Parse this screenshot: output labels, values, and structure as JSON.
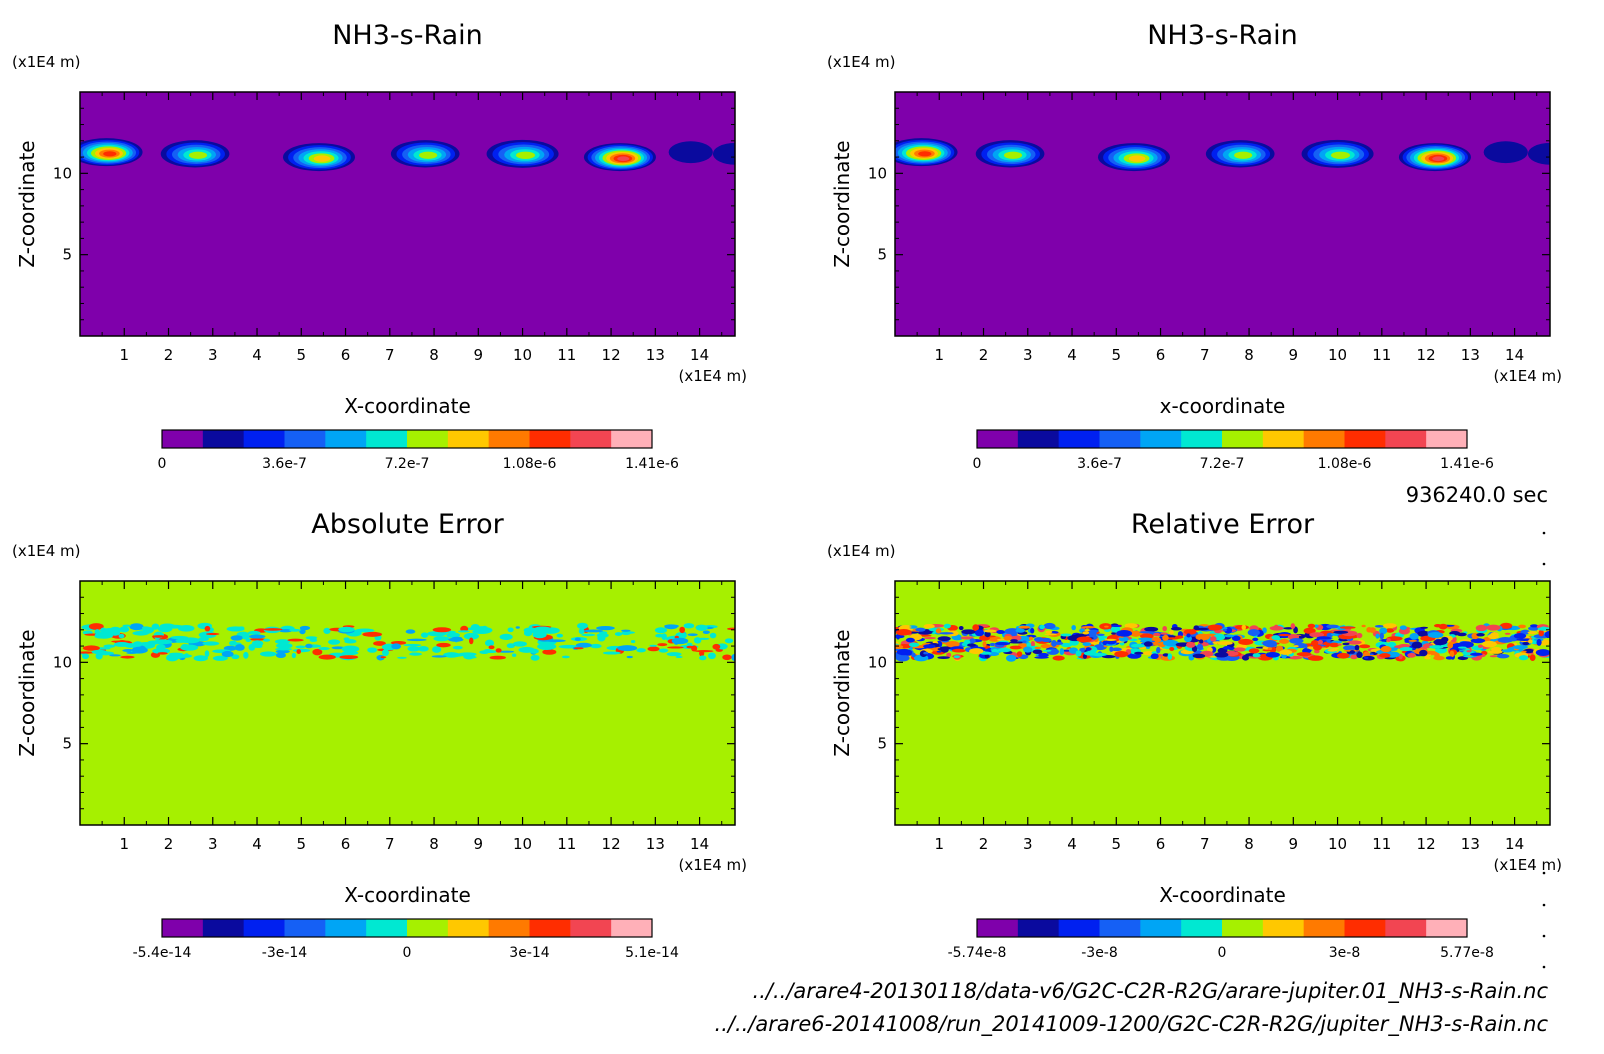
{
  "chart_data": [
    {
      "type": "heatmap",
      "title": "NH3-s-Rain",
      "xlabel": "X-coordinate",
      "ylabel": "Z-coordinate",
      "x_unit": "(x1E4 m)",
      "y_unit": "(x1E4 m)",
      "xlim": [
        0,
        14.8
      ],
      "ylim": [
        0,
        15
      ],
      "x_ticks": [
        "1",
        "2",
        "3",
        "4",
        "5",
        "6",
        "7",
        "8",
        "9",
        "10",
        "11",
        "12",
        "13",
        "14"
      ],
      "y_ticks": [
        "5",
        "10"
      ],
      "background_color": "#7f00ab",
      "band_z": [
        10.3,
        12
      ],
      "colorbar": {
        "tick_labels": [
          "0",
          "3.6e-7",
          "7.2e-7",
          "1.08e-6",
          "1.41e-6"
        ],
        "colors": [
          "#7f00ab",
          "#0a0a9e",
          "#0020f0",
          "#1560f5",
          "#00a5f5",
          "#00e8d2",
          "#a6f000",
          "#ffc800",
          "#ff7a00",
          "#ff2d00",
          "#f24552",
          "#ffb0b8"
        ]
      },
      "clouds": [
        {
          "x": 0.6,
          "z": 11.3,
          "peak": 1.3e-06
        },
        {
          "x": 2.6,
          "z": 11.2,
          "peak": 8e-07
        },
        {
          "x": 5.4,
          "z": 11.0,
          "peak": 9.5e-07
        },
        {
          "x": 7.8,
          "z": 11.2,
          "peak": 8e-07
        },
        {
          "x": 10.0,
          "z": 11.2,
          "peak": 9e-07
        },
        {
          "x": 12.2,
          "z": 11.0,
          "peak": 1.41e-06
        },
        {
          "x": 13.8,
          "z": 11.3,
          "peak": 2e-07
        },
        {
          "x": 14.8,
          "z": 11.2,
          "peak": 2e-07
        }
      ]
    },
    {
      "type": "heatmap",
      "title": "NH3-s-Rain",
      "xlabel": "x-coordinate",
      "ylabel": "Z-coordinate",
      "x_unit": "(x1E4 m)",
      "y_unit": "(x1E4 m)",
      "xlim": [
        0,
        14.8
      ],
      "ylim": [
        0,
        15
      ],
      "x_ticks": [
        "1",
        "2",
        "3",
        "4",
        "5",
        "6",
        "7",
        "8",
        "9",
        "10",
        "11",
        "12",
        "13",
        "14"
      ],
      "y_ticks": [
        "5",
        "10"
      ],
      "background_color": "#7f00ab",
      "band_z": [
        10.3,
        12
      ],
      "colorbar": {
        "tick_labels": [
          "0",
          "3.6e-7",
          "7.2e-7",
          "1.08e-6",
          "1.41e-6"
        ],
        "colors": [
          "#7f00ab",
          "#0a0a9e",
          "#0020f0",
          "#1560f5",
          "#00a5f5",
          "#00e8d2",
          "#a6f000",
          "#ffc800",
          "#ff7a00",
          "#ff2d00",
          "#f24552",
          "#ffb0b8"
        ]
      },
      "clouds": [
        {
          "x": 0.6,
          "z": 11.3,
          "peak": 1.3e-06
        },
        {
          "x": 2.6,
          "z": 11.2,
          "peak": 8e-07
        },
        {
          "x": 5.4,
          "z": 11.0,
          "peak": 9.5e-07
        },
        {
          "x": 7.8,
          "z": 11.2,
          "peak": 8e-07
        },
        {
          "x": 10.0,
          "z": 11.2,
          "peak": 9e-07
        },
        {
          "x": 12.2,
          "z": 11.0,
          "peak": 1.41e-06
        },
        {
          "x": 13.8,
          "z": 11.3,
          "peak": 2e-07
        },
        {
          "x": 14.8,
          "z": 11.2,
          "peak": 2e-07
        }
      ]
    },
    {
      "type": "heatmap",
      "title": "Absolute Error",
      "xlabel": "X-coordinate",
      "ylabel": "Z-coordinate",
      "x_unit": "(x1E4 m)",
      "y_unit": "(x1E4 m)",
      "xlim": [
        0,
        14.8
      ],
      "ylim": [
        0,
        15
      ],
      "x_ticks": [
        "1",
        "2",
        "3",
        "4",
        "5",
        "6",
        "7",
        "8",
        "9",
        "10",
        "11",
        "12",
        "13",
        "14"
      ],
      "y_ticks": [
        "5",
        "10"
      ],
      "background_color": "#a6f000",
      "band_z": [
        10,
        12.5
      ],
      "noise": "sparse",
      "colorbar": {
        "tick_labels": [
          "-5.4e-14",
          "-3e-14",
          "0",
          "3e-14",
          "5.1e-14"
        ],
        "colors": [
          "#7f00ab",
          "#0a0a9e",
          "#0020f0",
          "#1560f5",
          "#00a5f5",
          "#00e8d2",
          "#a6f000",
          "#ffc800",
          "#ff7a00",
          "#ff2d00",
          "#f24552",
          "#ffb0b8"
        ]
      }
    },
    {
      "type": "heatmap",
      "title": "Relative Error",
      "xlabel": "X-coordinate",
      "ylabel": "Z-coordinate",
      "x_unit": "(x1E4 m)",
      "y_unit": "(x1E4 m)",
      "xlim": [
        0,
        14.8
      ],
      "ylim": [
        0,
        15
      ],
      "x_ticks": [
        "1",
        "2",
        "3",
        "4",
        "5",
        "6",
        "7",
        "8",
        "9",
        "10",
        "11",
        "12",
        "13",
        "14"
      ],
      "y_ticks": [
        "5",
        "10"
      ],
      "background_color": "#a6f000",
      "band_z": [
        10,
        12.5
      ],
      "noise": "dense",
      "colorbar": {
        "tick_labels": [
          "-5.74e-8",
          "-3e-8",
          "0",
          "3e-8",
          "5.77e-8"
        ],
        "colors": [
          "#7f00ab",
          "#0a0a9e",
          "#0020f0",
          "#1560f5",
          "#00a5f5",
          "#00e8d2",
          "#a6f000",
          "#ffc800",
          "#ff7a00",
          "#ff2d00",
          "#f24552",
          "#ffb0b8"
        ]
      }
    }
  ],
  "footer": {
    "time_label": "936240.0 sec",
    "path_1": "../../arare4-20130118/data-v6/G2C-C2R-R2G/arare-jupiter.01_NH3-s-Rain.nc",
    "path_2": "../../arare6-20141008/run_20141009-1200/G2C-C2R-R2G/jupiter_NH3-s-Rain.nc"
  }
}
